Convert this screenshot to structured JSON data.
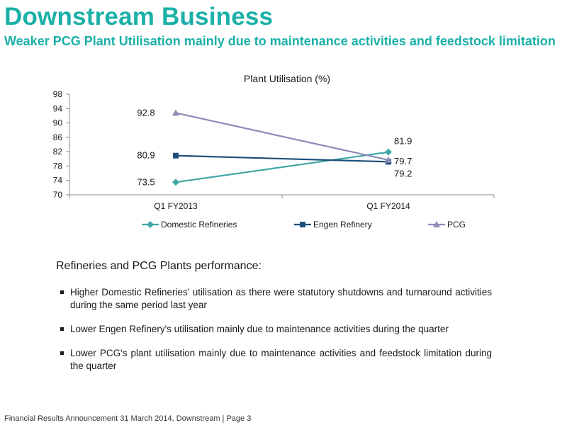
{
  "header": {
    "title": "Downstream Business",
    "subtitle": "Weaker PCG Plant Utilisation mainly due to maintenance activities and feedstock limitation"
  },
  "chart_data": {
    "type": "line",
    "title": "Plant Utilisation (%)",
    "categories": [
      "Q1 FY2013",
      "Q1 FY2014"
    ],
    "ylim": [
      70,
      98
    ],
    "yticks": [
      70,
      74,
      78,
      82,
      86,
      90,
      94,
      98
    ],
    "grid": false,
    "legend": "bottom",
    "series": [
      {
        "name": "Domestic Refineries",
        "values": [
          73.5,
          81.9
        ],
        "labels": [
          "73.5",
          "81.9"
        ],
        "color": "#3fa9a5",
        "marker": "diamond"
      },
      {
        "name": "Engen Refinery",
        "values": [
          80.9,
          79.2
        ],
        "labels": [
          "80.9",
          "79.2"
        ],
        "color": "#1c4f7a",
        "marker": "square"
      },
      {
        "name": "PCG",
        "values": [
          92.8,
          79.7
        ],
        "labels": [
          "92.8",
          "79.7"
        ],
        "color": "#8e8bb8",
        "marker": "triangle"
      }
    ]
  },
  "performance": {
    "heading": "Refineries and PCG Plants performance:",
    "bullets": [
      "Higher Domestic Refineries' utilisation as there were statutory shutdowns and turnaround activities during the same period last year",
      "Lower Engen Refinery's utilisation mainly due to maintenance activities during the quarter",
      "Lower PCG's plant utilisation mainly due to maintenance activities and feedstock limitation during the quarter"
    ]
  },
  "footer": {
    "text": "Financial Results Announcement 31 March 2014, Downstream | Page 3"
  }
}
